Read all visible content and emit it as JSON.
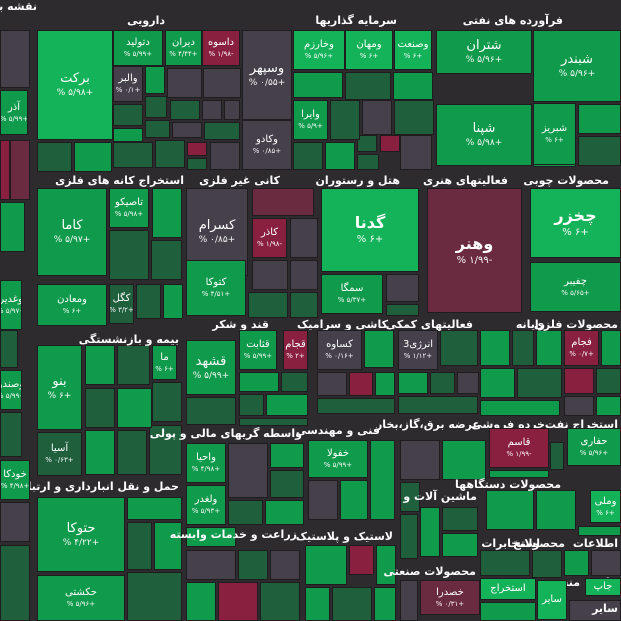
{
  "title": "نقشه بازار",
  "colors": {
    "bright_green": "#14b35a",
    "mid_green": "#109a4c",
    "dark_green": "#1f5f3c",
    "neutral": "#45404a",
    "red": "#8a2040",
    "dark_red": "#6a2a40",
    "background": "#2e2b2f"
  },
  "sectors": [
    {
      "label": "فرآورده های نفتی"
    },
    {
      "label": "سرمایه گذاریها"
    },
    {
      "label": "دارویی"
    },
    {
      "label": "محصولات چوبی"
    },
    {
      "label": "فعالیتهای هنری"
    },
    {
      "label": "هتل و رستوران"
    },
    {
      "label": "کانی غیر فلزی"
    },
    {
      "label": "استخراج کانه های فلزی"
    },
    {
      "label": "محصولات فلزی"
    },
    {
      "label": "رایانه"
    },
    {
      "label": "فعالیتهای کمکی"
    },
    {
      "label": "کاشی و سرامیک"
    },
    {
      "label": "قند و شکر"
    },
    {
      "label": "بیمه و بازنشستگی"
    },
    {
      "label": "استخراج نفت"
    },
    {
      "label": "خرده فروشی"
    },
    {
      "label": "عرضه برق،گاز،بخار"
    },
    {
      "label": "فنی و مهندسی"
    },
    {
      "label": "واسطه گریهای مالی و پولی"
    },
    {
      "label": "حمل و نقل انبارداری و ارتباطات"
    },
    {
      "label": "محصولات دستگاهها"
    },
    {
      "label": "ماشین آلات و"
    },
    {
      "label": "زراعت و خدمات وابسته"
    },
    {
      "label": "لاستیک و پلاستیک"
    },
    {
      "label": "اطلاعات"
    },
    {
      "label": "استخ"
    },
    {
      "label": "محصولا"
    },
    {
      "label": "مخابرات"
    },
    {
      "label": "چاپ"
    },
    {
      "label": "منسو"
    },
    {
      "label": "سایر"
    },
    {
      "label": "محصولات صنعتی"
    }
  ],
  "tiles": [
    {
      "name": "شبندر",
      "change": "% ۵/۹۶+",
      "color": "mid_green"
    },
    {
      "name": "شتران",
      "change": "% ۵/۹۶+",
      "color": "mid_green"
    },
    {
      "name": "شپنا",
      "change": "% ۵/۹۸+",
      "color": "mid_green"
    },
    {
      "name": "شبریز",
      "change": "% ۶+",
      "color": "mid_green"
    },
    {
      "name": "وصنعت",
      "change": "% ۶+",
      "color": "bright_green"
    },
    {
      "name": "ومهان",
      "change": "% ۶+",
      "color": "bright_green"
    },
    {
      "name": "وخارزم",
      "change": "% ۵/۹۶+",
      "color": "bright_green"
    },
    {
      "name": "وسپهر",
      "change": "% ۰/۵۵+",
      "color": "neutral"
    },
    {
      "name": "وایرا",
      "change": "% ۵/۹+",
      "color": "mid_green"
    },
    {
      "name": "وکادو",
      "change": "% ۰/۸۵+",
      "color": "neutral"
    },
    {
      "name": "داسوه",
      "change": "% ۱/۹۸-",
      "color": "red"
    },
    {
      "name": "دیران",
      "change": "% ۴/۴۴+",
      "color": "mid_green"
    },
    {
      "name": "دتولید",
      "change": "% ۵/۹۹+",
      "color": "mid_green"
    },
    {
      "name": "برکت",
      "change": "% ۵/۹۸+",
      "color": "bright_green"
    },
    {
      "name": "والبر",
      "change": "% ۰/۱+",
      "color": "neutral"
    },
    {
      "name": "چخزر",
      "change": "% ۶+",
      "color": "bright_green"
    },
    {
      "name": "چفیبر",
      "change": "% ۵/۶۵+",
      "color": "mid_green"
    },
    {
      "name": "وهنر",
      "change": "% ۱/۹۹-",
      "color": "dark_red"
    },
    {
      "name": "گدنا",
      "change": "% ۶+",
      "color": "bright_green"
    },
    {
      "name": "سمگا",
      "change": "% ۵/۳۷+",
      "color": "mid_green"
    },
    {
      "name": "کسرام",
      "change": "% ۰/۸۵+",
      "color": "neutral"
    },
    {
      "name": "کاذر",
      "change": "% ۱/۹۸-",
      "color": "red"
    },
    {
      "name": "کتوکا",
      "change": "% ۴/۵۱+",
      "color": "mid_green"
    },
    {
      "name": "تاصیکو",
      "change": "% ۵/۹۸+",
      "color": "mid_green"
    },
    {
      "name": "کاما",
      "change": "% ۵/۹۷+",
      "color": "mid_green"
    },
    {
      "name": "ومعادن",
      "change": "% ۶+",
      "color": "mid_green"
    },
    {
      "name": "کگل",
      "change": "% ۳/۲+",
      "color": "dark_green"
    },
    {
      "name": "فجام",
      "change": "% ۰/۷+",
      "color": "red"
    },
    {
      "name": "انرژی3",
      "change": "% ۱/۱۲+",
      "color": "neutral"
    },
    {
      "name": "کساوه",
      "change": "% ۰/۱۶+",
      "color": "neutral"
    },
    {
      "name": "قثابت",
      "change": "% ۵/۹۹+",
      "color": "mid_green"
    },
    {
      "name": "قجام",
      "change": "% ۲+",
      "color": "red"
    },
    {
      "name": "قشهد",
      "change": "% ۵/۹۹+",
      "color": "mid_green"
    },
    {
      "name": "ما",
      "change": "% ۶+",
      "color": "mid_green"
    },
    {
      "name": "بنو",
      "change": "% ۶+",
      "color": "mid_green"
    },
    {
      "name": "آسیا",
      "change": "% ۰/۶۳+",
      "color": "dark_green"
    },
    {
      "name": "حفاری",
      "change": "% ۵/۹۶+",
      "color": "mid_green"
    },
    {
      "name": "قاسم",
      "change": "% ۱/۹۹-",
      "color": "red"
    },
    {
      "name": "خفولا",
      "change": "% ۵/۹۹+",
      "color": "mid_green"
    },
    {
      "name": "واحیا",
      "change": "% ۴/۹۸+",
      "color": "mid_green"
    },
    {
      "name": "ولغدر",
      "change": "% ۵/۹۳+",
      "color": "mid_green"
    },
    {
      "name": "حتوکا",
      "change": "% ۴/۲۲+",
      "color": "mid_green"
    },
    {
      "name": "حکشتی",
      "change": "% ۵/۹۶+",
      "color": "mid_green"
    },
    {
      "name": "وملی",
      "change": "% ۶+",
      "color": "bright_green"
    },
    {
      "name": "خصدرا",
      "change": "% ۰/۳۱+",
      "color": "dark_red"
    },
    {
      "name": "سایر",
      "change": "",
      "color": "bright_green"
    },
    {
      "name": "استخراج",
      "change": "",
      "color": "bright_green"
    },
    {
      "name": "جاپ",
      "change": "",
      "color": "bright_green"
    },
    {
      "name": "آذر",
      "change": "% ۵/۹۹+",
      "color": "mid_green"
    },
    {
      "name": "وغدیر",
      "change": "% ۵/۹۷+",
      "color": "mid_green"
    },
    {
      "name": "وصندو",
      "change": "% ۵/۹۹+",
      "color": "mid_green"
    },
    {
      "name": "خودکا",
      "change": "% ۴/۹۸+",
      "color": "mid_green"
    }
  ]
}
